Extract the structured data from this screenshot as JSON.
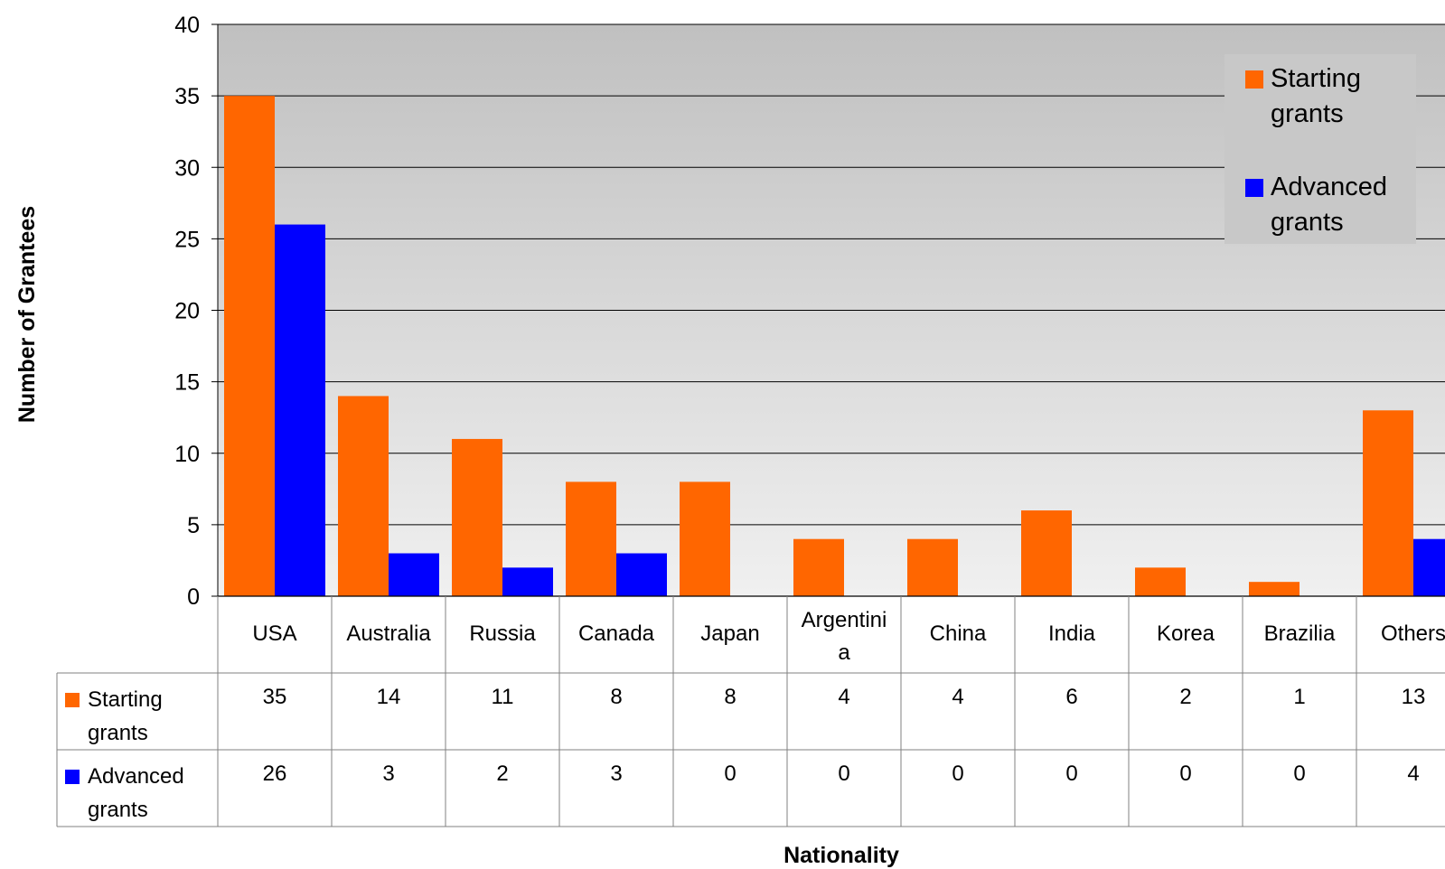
{
  "chart_data": {
    "type": "bar",
    "title": "",
    "xlabel": "Nationality",
    "ylabel": "Number of Grantees",
    "ylim": [
      0,
      40
    ],
    "yticks": [
      0,
      5,
      10,
      15,
      20,
      25,
      30,
      35,
      40
    ],
    "grid": true,
    "legend_position": "top-right",
    "categories": [
      [
        "USA"
      ],
      [
        "Australia"
      ],
      [
        "Russia"
      ],
      [
        "Canada"
      ],
      [
        "Japan"
      ],
      [
        "Argentini",
        "a"
      ],
      [
        "China"
      ],
      [
        "India"
      ],
      [
        "Korea"
      ],
      [
        "Brazilia"
      ],
      [
        "Others"
      ]
    ],
    "series": [
      {
        "name": [
          "Starting",
          "grants"
        ],
        "color": "#FF6600",
        "values": [
          35,
          14,
          11,
          8,
          8,
          4,
          4,
          6,
          2,
          1,
          13
        ]
      },
      {
        "name": [
          "Advanced",
          "grants"
        ],
        "color": "#0000FF",
        "values": [
          26,
          3,
          2,
          3,
          0,
          0,
          0,
          0,
          0,
          0,
          4
        ]
      }
    ],
    "data_table": true,
    "plot_background": [
      "#C0C0C0",
      "#F0F0F0"
    ]
  }
}
